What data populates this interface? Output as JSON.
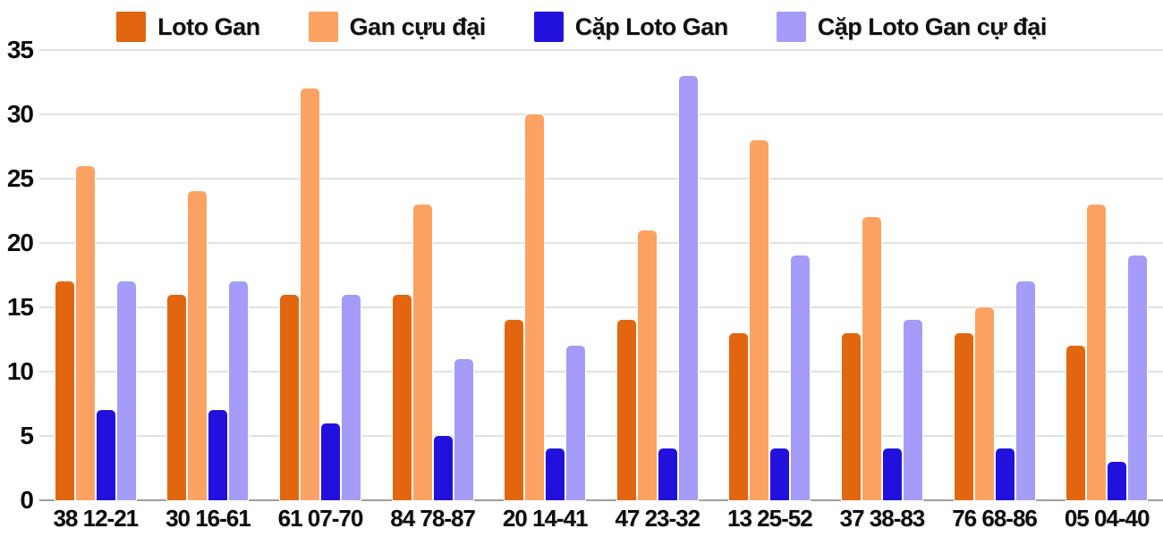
{
  "chart_data": {
    "type": "bar",
    "title": "",
    "categories": [
      "38 12-21",
      "30 16-61",
      "61 07-70",
      "84 78-87",
      "20 14-41",
      "47 23-32",
      "13 25-52",
      "37 38-83",
      "76 68-86",
      "05 04-40"
    ],
    "series": [
      {
        "name": "Loto Gan",
        "color": "#e2660f",
        "values": [
          17,
          16,
          16,
          16,
          14,
          14,
          13,
          13,
          13,
          12
        ]
      },
      {
        "name": "Gan cựu đại",
        "color": "#fca262",
        "values": [
          26,
          24,
          32,
          23,
          30,
          21,
          28,
          22,
          15,
          23
        ]
      },
      {
        "name": "Cặp Loto Gan",
        "color": "#2211dd",
        "values": [
          7,
          7,
          6,
          5,
          4,
          4,
          4,
          4,
          4,
          3
        ]
      },
      {
        "name": "Cặp Loto Gan cự đại",
        "color": "#a49cf8",
        "values": [
          17,
          17,
          16,
          11,
          12,
          33,
          19,
          14,
          17,
          19
        ]
      }
    ],
    "ylim": [
      0,
      35
    ],
    "ytick_step": 5,
    "yticks": [
      "0",
      "5",
      "10",
      "15",
      "20",
      "25",
      "30",
      "35"
    ],
    "grid": true,
    "legend_position": "top"
  },
  "colors": {
    "background": "#ffffff",
    "gridline": "#e2e2e2",
    "axis_line": "#9e9e9e",
    "text": "#0d0d0d"
  }
}
